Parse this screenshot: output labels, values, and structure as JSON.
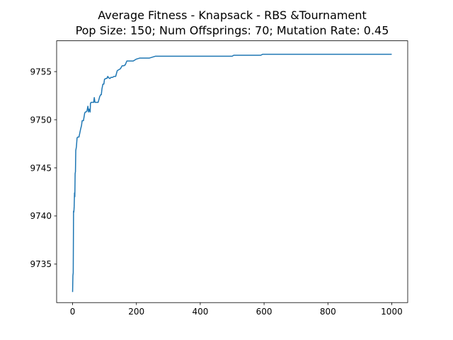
{
  "chart_data": {
    "type": "line",
    "title": "Average Fitness - Knapsack - RBS &Tournament",
    "subtitle": "Pop Size: 150; Num Offsprings: 70; Mutation Rate: 0.45",
    "xlabel": "",
    "ylabel": "",
    "xlim": [
      -50,
      1050
    ],
    "ylim": [
      9731.0,
      9758.2
    ],
    "xticks": [
      0,
      200,
      400,
      600,
      800,
      1000
    ],
    "yticks": [
      9735,
      9740,
      9745,
      9750,
      9755
    ],
    "grid": false,
    "series_color": "#1f77b4",
    "series": [
      {
        "x": [
          0,
          1,
          2,
          3,
          4,
          5,
          6,
          7,
          8,
          9,
          10,
          12,
          14,
          16,
          18,
          20,
          25,
          28,
          30,
          32,
          34,
          38,
          40,
          42,
          45,
          48,
          50,
          52,
          55,
          56,
          58,
          60,
          62,
          64,
          66,
          68,
          70,
          75,
          77,
          80,
          85,
          88,
          90,
          92,
          95,
          98,
          100,
          105,
          108,
          110,
          115,
          118,
          120,
          125,
          130,
          135,
          140,
          150,
          155,
          160,
          165,
          170,
          175,
          180,
          190,
          200,
          210,
          220,
          230,
          240,
          250,
          260,
          270,
          300,
          350,
          400,
          450,
          500,
          505,
          550,
          590,
          595,
          650,
          700,
          800,
          900,
          1000
        ],
        "y": [
          9732.1,
          9733.8,
          9734.1,
          9740.5,
          9740.4,
          9741.0,
          9742.4,
          9742.0,
          9744.4,
          9744.6,
          9746.8,
          9747.2,
          9748.1,
          9748.2,
          9748.2,
          9748.2,
          9749.0,
          9749.4,
          9749.9,
          9749.9,
          9749.9,
          9750.7,
          9750.8,
          9750.8,
          9750.9,
          9751.4,
          9750.8,
          9751.1,
          9750.8,
          9751.7,
          9751.8,
          9751.8,
          9751.8,
          9751.8,
          9751.8,
          9752.3,
          9751.8,
          9751.8,
          9751.8,
          9751.8,
          9752.4,
          9752.6,
          9752.6,
          9753.2,
          9753.7,
          9753.7,
          9754.2,
          9754.3,
          9754.3,
          9754.5,
          9754.3,
          9754.3,
          9754.4,
          9754.4,
          9754.5,
          9754.5,
          9755.1,
          9755.3,
          9755.6,
          9755.6,
          9755.7,
          9756.1,
          9756.1,
          9756.1,
          9756.1,
          9756.3,
          9756.4,
          9756.4,
          9756.4,
          9756.4,
          9756.5,
          9756.6,
          9756.6,
          9756.6,
          9756.6,
          9756.6,
          9756.6,
          9756.6,
          9756.7,
          9756.7,
          9756.7,
          9756.8,
          9756.8,
          9756.8,
          9756.8,
          9756.8,
          9756.8
        ]
      }
    ]
  }
}
